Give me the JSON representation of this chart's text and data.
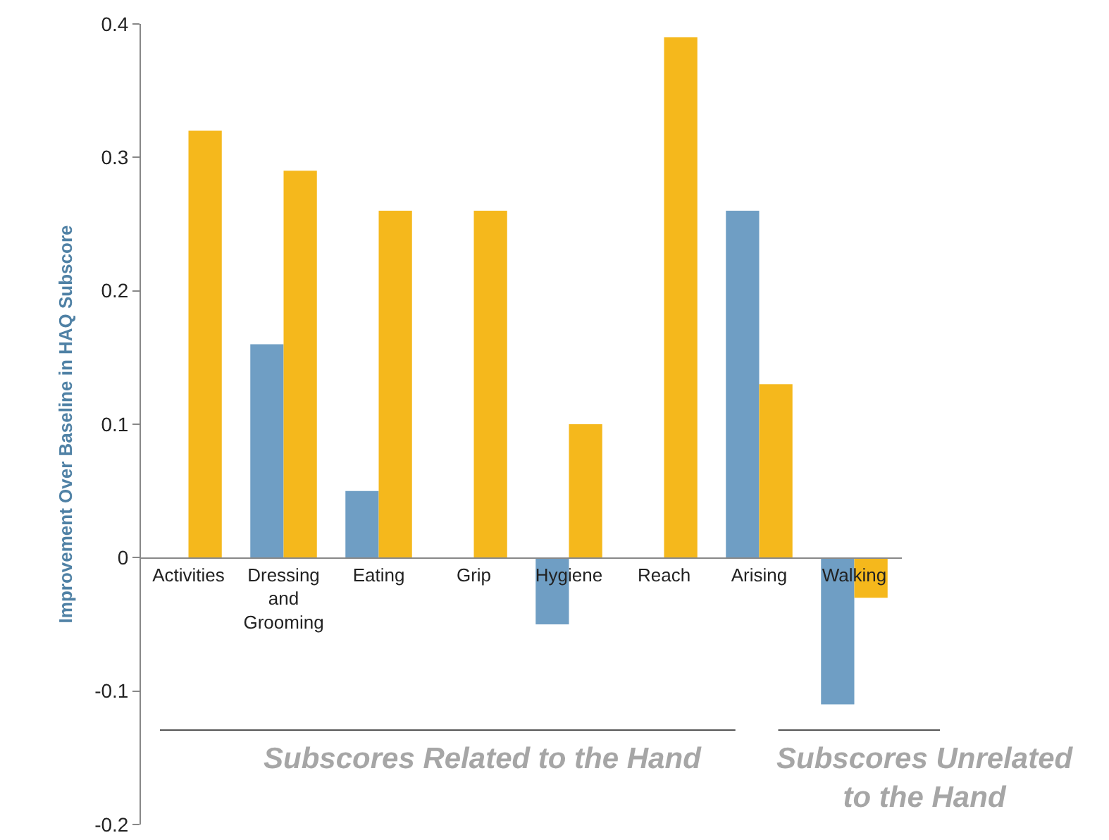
{
  "chart_data": {
    "type": "bar",
    "ylabel": "Improvement Over Baseline in HAQ Subscore",
    "categories": [
      "Activities",
      "Dressing and Grooming",
      "Eating",
      "Grip",
      "Hygiene",
      "Reach",
      "Arising",
      "Walking"
    ],
    "series": [
      {
        "color": "#6f9ec4",
        "values": [
          0,
          0.16,
          0.05,
          0,
          -0.05,
          0,
          0.26,
          -0.11
        ]
      },
      {
        "color": "#f5b81c",
        "values": [
          0.32,
          0.29,
          0.26,
          0.26,
          0.1,
          0.39,
          0.13,
          -0.03
        ]
      }
    ],
    "ylim": [
      -0.2,
      0.4
    ],
    "yticks": [
      -0.2,
      -0.1,
      0,
      0.1,
      0.2,
      0.3,
      0.4
    ],
    "grid": false,
    "annotations": [
      "Subscores Related to the Hand",
      "Subscores Unrelated to the Hand"
    ]
  }
}
